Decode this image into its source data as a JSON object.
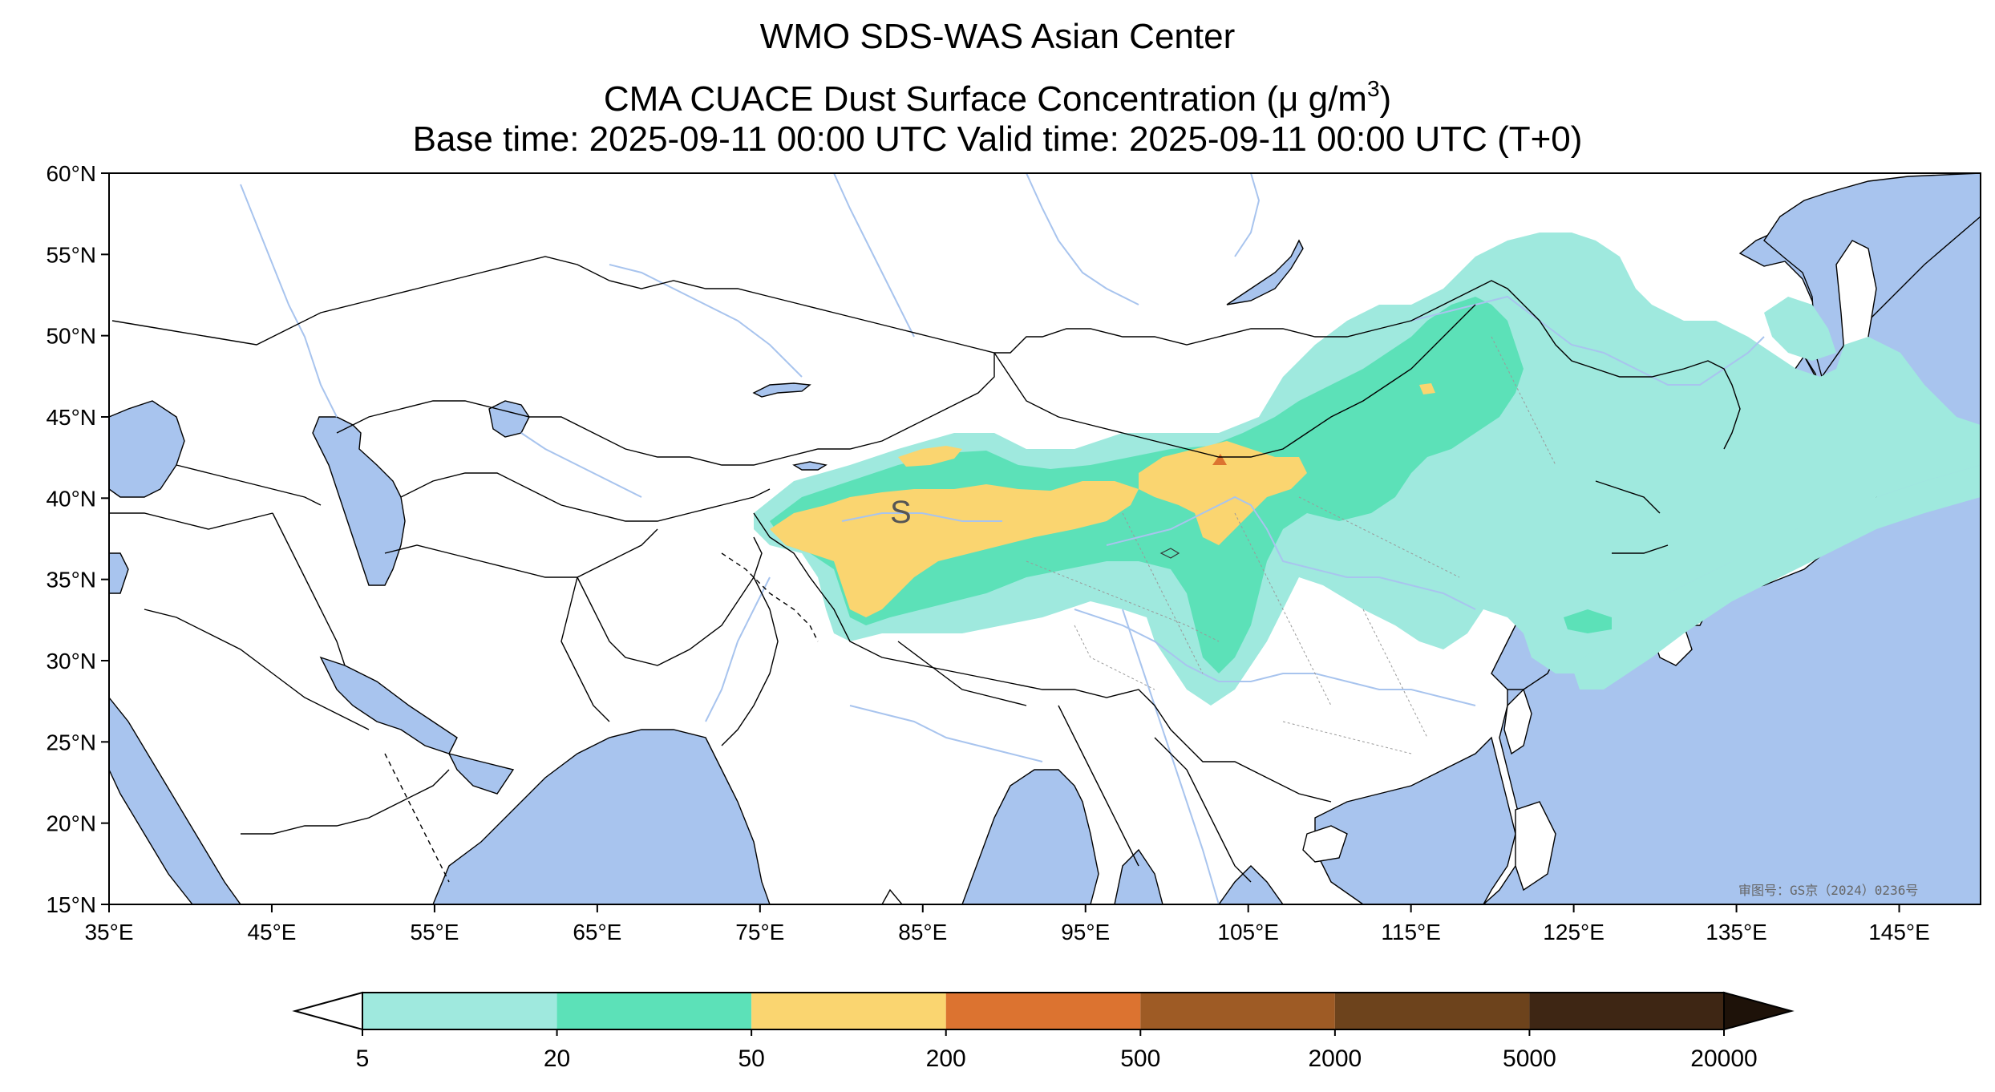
{
  "titles": {
    "line1": "WMO SDS-WAS Asian Center",
    "line2_prefix": "CMA CUACE Dust Surface Concentration (",
    "line2_unit": "μ g/m",
    "line2_sup": "3",
    "line2_suffix": ")",
    "line3": "Base time: 2025-09-11 00:00 UTC Valid time: 2025-09-11 00:00 UTC (T+0)"
  },
  "map": {
    "lon_range": [
      35,
      150
    ],
    "lat_range": [
      15,
      60
    ],
    "lon_ticks": [
      "35°E",
      "45°E",
      "55°E",
      "65°E",
      "75°E",
      "85°E",
      "95°E",
      "105°E",
      "115°E",
      "125°E",
      "135°E",
      "145°E"
    ],
    "lat_ticks": [
      "60°N",
      "55°N",
      "50°N",
      "45°N",
      "40°N",
      "35°N",
      "30°N",
      "25°N",
      "20°N",
      "15°N"
    ],
    "ocean_color": "#a8c4ee",
    "land_color": "#ffffff",
    "approval_note": "审图号：GS京（2024）0236号",
    "contour_label": "S"
  },
  "colorbar": {
    "levels": [
      "5",
      "20",
      "50",
      "200",
      "500",
      "2000",
      "5000",
      "20000"
    ],
    "colors": [
      "#9fe9de",
      "#5ce1b8",
      "#fad570",
      "#dc7330",
      "#9e5b25",
      "#6d431c",
      "#3e2614"
    ],
    "under_color": "#ffffff",
    "over_color": "#1e1209"
  }
}
